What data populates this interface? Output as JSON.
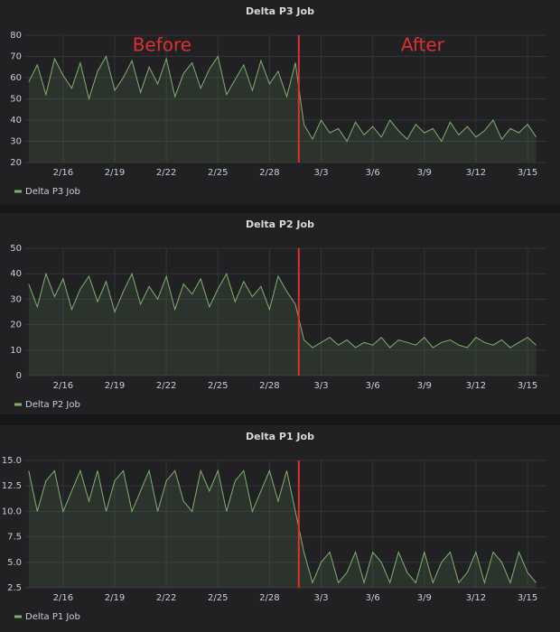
{
  "chart_data": [
    {
      "type": "line",
      "title": "Delta P3 Job",
      "x": [
        45,
        45.5,
        46,
        46.5,
        47,
        47.5,
        48,
        48.5,
        49,
        49.5,
        50,
        50.5,
        51,
        51.5,
        52,
        52.5,
        53,
        53.5,
        54,
        54.5,
        55,
        55.5,
        56,
        56.5,
        57,
        57.5,
        58,
        58.5,
        59,
        59.5,
        60,
        60.5,
        61,
        61.5,
        62,
        62.5,
        63,
        63.5,
        64,
        64.5,
        65,
        65.5,
        66,
        66.5,
        67,
        67.5,
        68,
        68.5,
        69,
        69.5,
        70,
        70.5,
        71,
        71.5,
        72,
        72.5,
        73,
        73.5,
        74,
        74.5
      ],
      "series": [
        {
          "name": "Delta P3 Job",
          "color": "#7eb26d",
          "values": [
            58,
            66,
            52,
            69,
            61,
            55,
            67,
            50,
            63,
            70,
            54,
            60,
            68,
            53,
            65,
            57,
            69,
            51,
            62,
            67,
            55,
            64,
            70,
            52,
            59,
            66,
            54,
            68,
            57,
            63,
            51,
            67,
            38,
            31,
            40,
            34,
            36,
            30,
            39,
            33,
            37,
            32,
            40,
            35,
            31,
            38,
            34,
            36,
            30,
            39,
            33,
            37,
            32,
            35,
            40,
            31,
            36,
            34,
            38,
            32
          ]
        }
      ],
      "xlim": [
        44.8,
        75.1
      ],
      "ylim": [
        20,
        80
      ],
      "yticks": [
        20,
        30,
        40,
        50,
        60,
        70,
        80
      ],
      "xticks": [
        {
          "value": 47,
          "label": "2/16"
        },
        {
          "value": 50,
          "label": "2/19"
        },
        {
          "value": 53,
          "label": "2/22"
        },
        {
          "value": 56,
          "label": "2/25"
        },
        {
          "value": 59,
          "label": "2/28"
        },
        {
          "value": 62,
          "label": "3/3"
        },
        {
          "value": 65,
          "label": "3/6"
        },
        {
          "value": 68,
          "label": "3/9"
        },
        {
          "value": 71,
          "label": "3/12"
        },
        {
          "value": 74,
          "label": "3/15"
        }
      ],
      "grid": true,
      "fill": true,
      "markers": [
        {
          "x": 60.7,
          "color": "#e02f2f"
        }
      ],
      "annotations": [
        "Before",
        "After"
      ]
    },
    {
      "type": "line",
      "title": "Delta P2 Job",
      "x": [
        45,
        45.5,
        46,
        46.5,
        47,
        47.5,
        48,
        48.5,
        49,
        49.5,
        50,
        50.5,
        51,
        51.5,
        52,
        52.5,
        53,
        53.5,
        54,
        54.5,
        55,
        55.5,
        56,
        56.5,
        57,
        57.5,
        58,
        58.5,
        59,
        59.5,
        60,
        60.5,
        61,
        61.5,
        62,
        62.5,
        63,
        63.5,
        64,
        64.5,
        65,
        65.5,
        66,
        66.5,
        67,
        67.5,
        68,
        68.5,
        69,
        69.5,
        70,
        70.5,
        71,
        71.5,
        72,
        72.5,
        73,
        73.5,
        74,
        74.5
      ],
      "series": [
        {
          "name": "Delta P2 Job",
          "color": "#7eb26d",
          "values": [
            36,
            27,
            40,
            31,
            38,
            26,
            34,
            39,
            29,
            37,
            25,
            33,
            40,
            28,
            35,
            30,
            39,
            26,
            36,
            32,
            38,
            27,
            34,
            40,
            29,
            37,
            31,
            35,
            26,
            39,
            33,
            28,
            14,
            11,
            13,
            15,
            12,
            14,
            11,
            13,
            12,
            15,
            11,
            14,
            13,
            12,
            15,
            11,
            13,
            14,
            12,
            11,
            15,
            13,
            12,
            14,
            11,
            13,
            15,
            12
          ]
        }
      ],
      "xlim": [
        44.8,
        75.1
      ],
      "ylim": [
        0,
        50
      ],
      "yticks": [
        0,
        10,
        20,
        30,
        40,
        50
      ],
      "xticks": [
        {
          "value": 47,
          "label": "2/16"
        },
        {
          "value": 50,
          "label": "2/19"
        },
        {
          "value": 53,
          "label": "2/22"
        },
        {
          "value": 56,
          "label": "2/25"
        },
        {
          "value": 59,
          "label": "2/28"
        },
        {
          "value": 62,
          "label": "3/3"
        },
        {
          "value": 65,
          "label": "3/6"
        },
        {
          "value": 68,
          "label": "3/9"
        },
        {
          "value": 71,
          "label": "3/12"
        },
        {
          "value": 74,
          "label": "3/15"
        }
      ],
      "grid": true,
      "fill": true,
      "markers": [
        {
          "x": 60.7,
          "color": "#e02f2f"
        }
      ]
    },
    {
      "type": "line",
      "title": "Delta P1 Job",
      "x": [
        45,
        45.5,
        46,
        46.5,
        47,
        47.5,
        48,
        48.5,
        49,
        49.5,
        50,
        50.5,
        51,
        51.5,
        52,
        52.5,
        53,
        53.5,
        54,
        54.5,
        55,
        55.5,
        56,
        56.5,
        57,
        57.5,
        58,
        58.5,
        59,
        59.5,
        60,
        60.5,
        61,
        61.5,
        62,
        62.5,
        63,
        63.5,
        64,
        64.5,
        65,
        65.5,
        66,
        66.5,
        67,
        67.5,
        68,
        68.5,
        69,
        69.5,
        70,
        70.5,
        71,
        71.5,
        72,
        72.5,
        73,
        73.5,
        74,
        74.5
      ],
      "series": [
        {
          "name": "Delta P1 Job",
          "color": "#7eb26d",
          "values": [
            14,
            10,
            13,
            14,
            10,
            12,
            14,
            11,
            14,
            10,
            13,
            14,
            10,
            12,
            14,
            10,
            13,
            14,
            11,
            10,
            14,
            12,
            14,
            10,
            13,
            14,
            10,
            12,
            14,
            11,
            14,
            10,
            6,
            3,
            5,
            6,
            3,
            4,
            6,
            3,
            6,
            5,
            3,
            6,
            4,
            3,
            6,
            3,
            5,
            6,
            3,
            4,
            6,
            3,
            6,
            5,
            3,
            6,
            4,
            3
          ]
        }
      ],
      "xlim": [
        44.8,
        75.1
      ],
      "ylim": [
        2.5,
        15
      ],
      "yticks": [
        {
          "value": 2.5,
          "label": "2.5"
        },
        {
          "value": 5,
          "label": "5.0"
        },
        {
          "value": 7.5,
          "label": "7.5"
        },
        {
          "value": 10,
          "label": "10.0"
        },
        {
          "value": 12.5,
          "label": "12.5"
        },
        {
          "value": 15,
          "label": "15.0"
        }
      ],
      "xticks": [
        {
          "value": 47,
          "label": "2/16"
        },
        {
          "value": 50,
          "label": "2/19"
        },
        {
          "value": 53,
          "label": "2/22"
        },
        {
          "value": 56,
          "label": "2/25"
        },
        {
          "value": 59,
          "label": "2/28"
        },
        {
          "value": 62,
          "label": "3/3"
        },
        {
          "value": 65,
          "label": "3/6"
        },
        {
          "value": 68,
          "label": "3/9"
        },
        {
          "value": 71,
          "label": "3/12"
        },
        {
          "value": 74,
          "label": "3/15"
        }
      ],
      "grid": true,
      "fill": true,
      "markers": [
        {
          "x": 60.7,
          "color": "#e02f2f"
        }
      ]
    }
  ]
}
